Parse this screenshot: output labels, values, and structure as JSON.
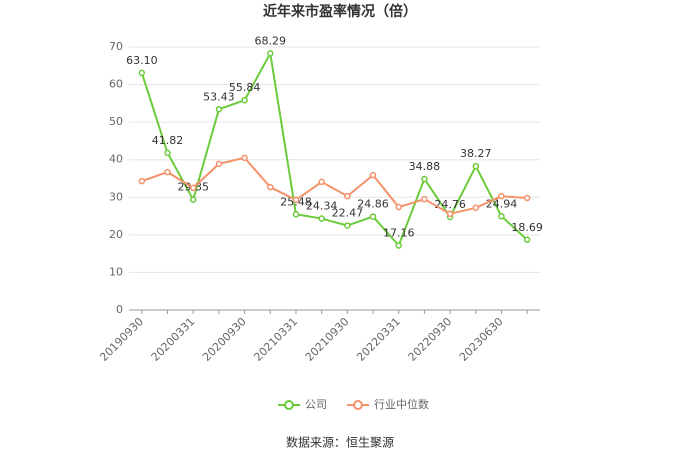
{
  "chart_data": {
    "type": "line",
    "title": "近年来市盈率情况（倍）",
    "categories": [
      "20190930",
      null,
      "20200331",
      null,
      "20200930",
      null,
      "20210331",
      null,
      "20210930",
      null,
      "20220331",
      null,
      "20220930",
      null,
      "20230630",
      null
    ],
    "series": [
      {
        "name": "公司",
        "color": "#6ccb3c",
        "values": [
          63.1,
          41.82,
          29.35,
          53.43,
          55.84,
          68.29,
          25.48,
          24.34,
          22.47,
          24.86,
          17.16,
          34.88,
          24.76,
          38.27,
          24.94,
          18.69
        ],
        "value_labels": [
          "63.10",
          "41.82",
          "29.35",
          "53.43",
          "55.84",
          "68.29",
          "25.48",
          "24.34",
          "22.47",
          "24.86",
          "17.16",
          "34.88",
          "24.76",
          "38.27",
          "24.94",
          "18.69"
        ]
      },
      {
        "name": "行业中位数",
        "color": "#f4926a",
        "values": [
          34.3,
          36.7,
          32.5,
          38.9,
          40.5,
          32.7,
          29.3,
          34.1,
          30.3,
          35.9,
          27.4,
          29.5,
          25.6,
          27.2,
          30.3,
          29.8
        ]
      }
    ],
    "ylim": [
      0,
      70
    ],
    "yticks": [
      0,
      10,
      20,
      30,
      40,
      50,
      60,
      70
    ],
    "grid": true,
    "legend": "bottom",
    "source": "数据来源：恒生聚源"
  }
}
